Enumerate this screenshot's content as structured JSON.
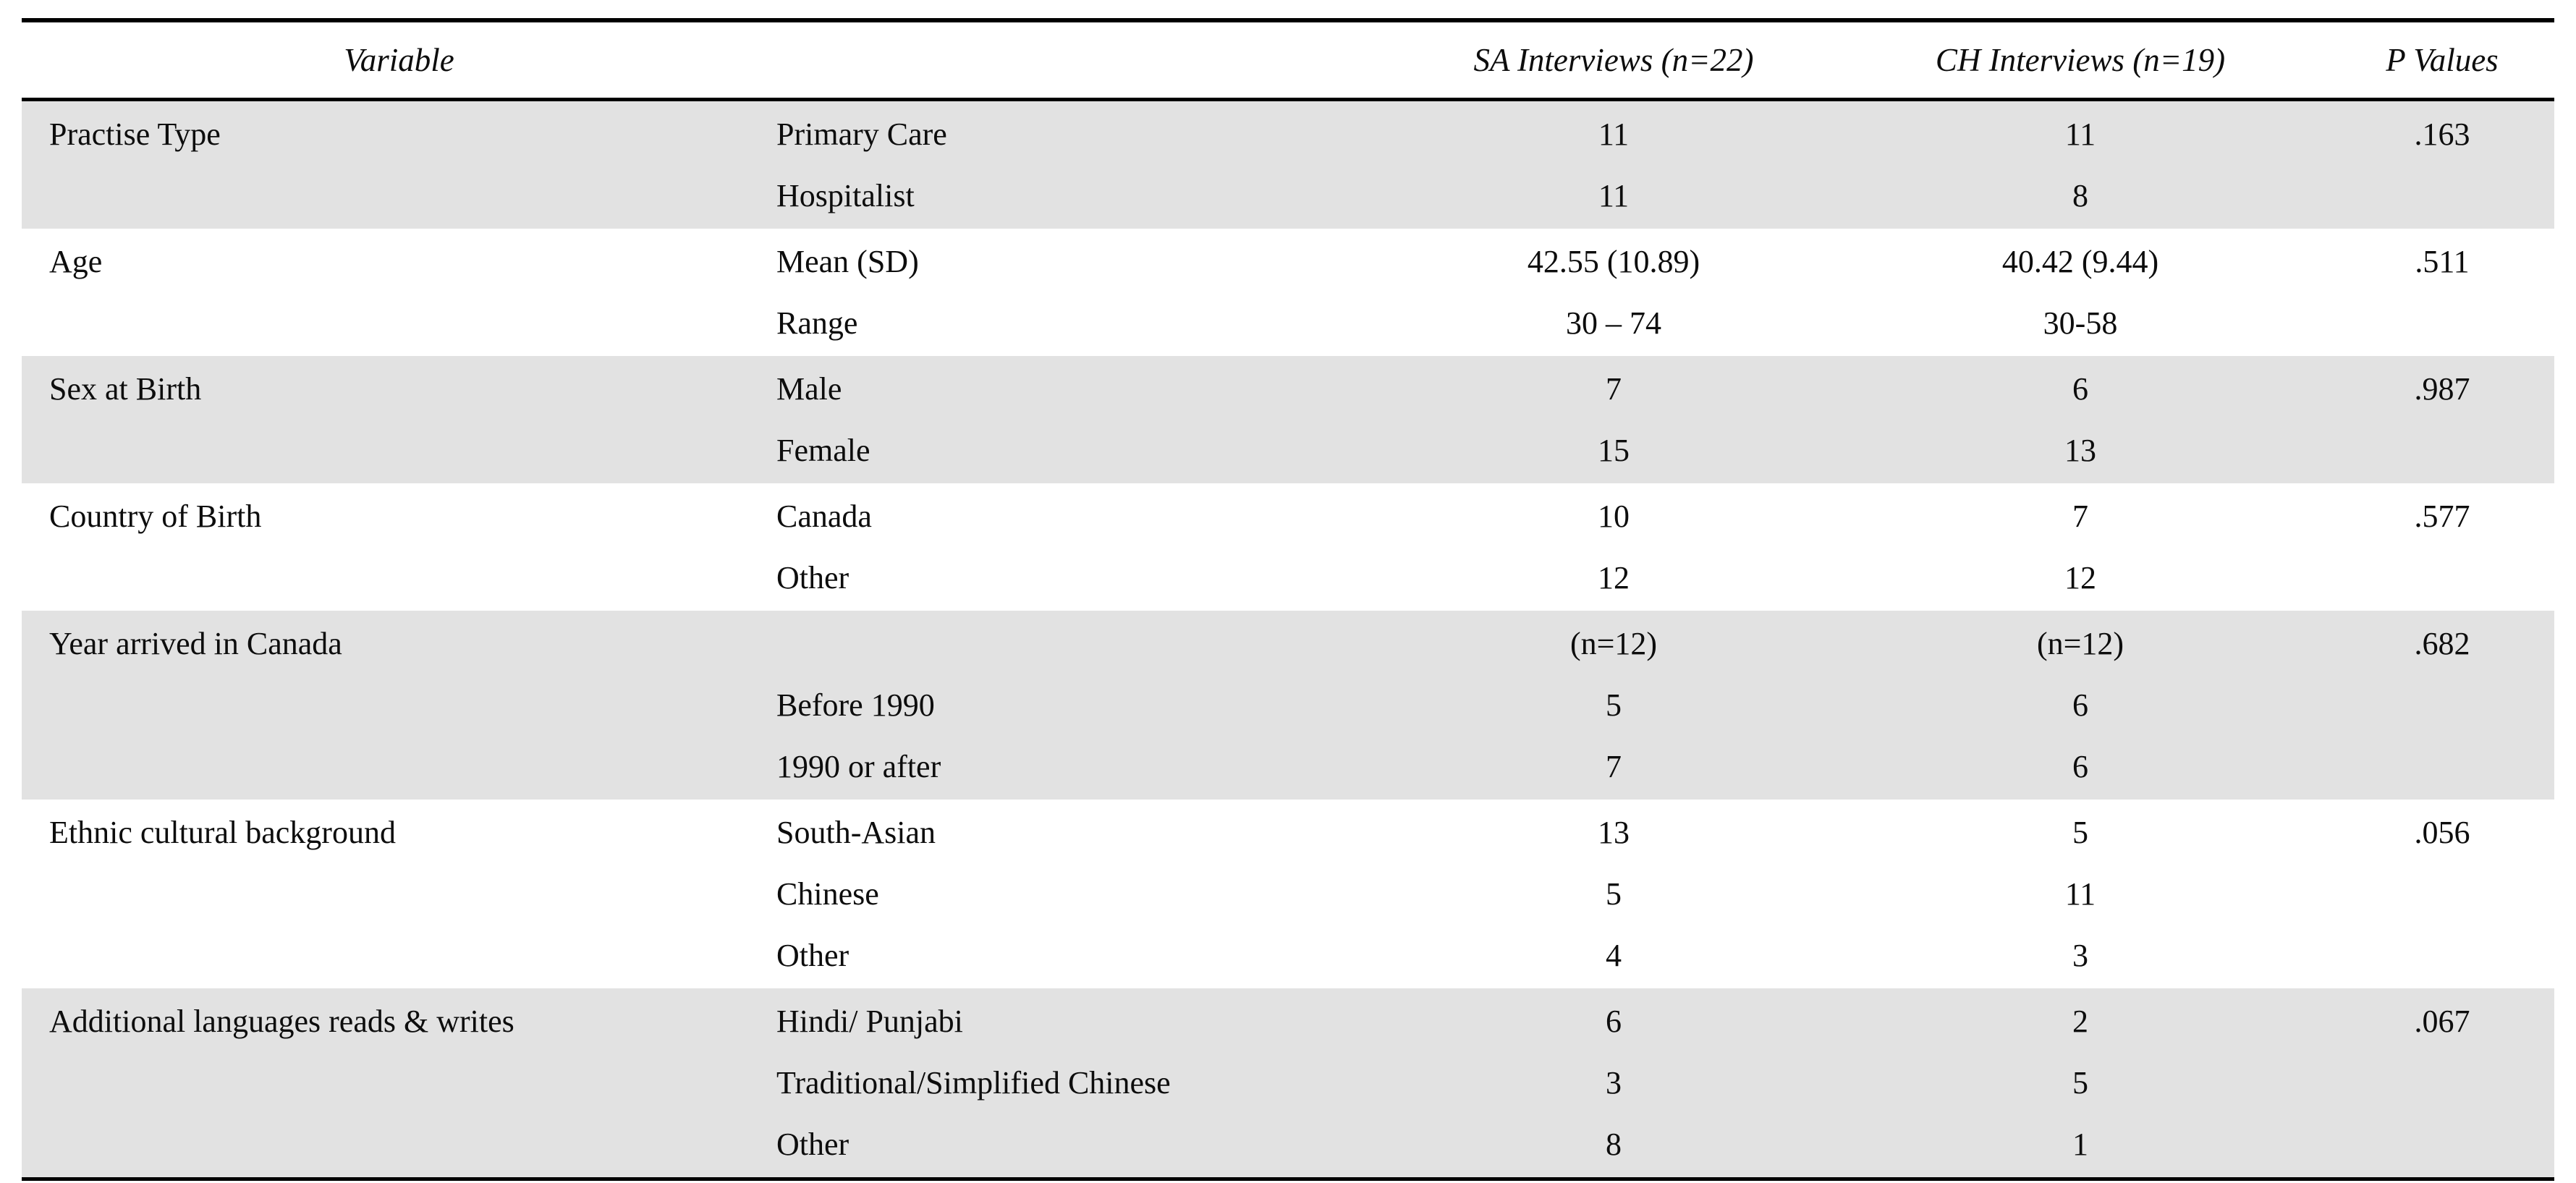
{
  "colors": {
    "row_shade": "#e2e2e2",
    "rule": "#000000",
    "text": "#0d0d0d",
    "background": "#ffffff"
  },
  "table": {
    "headers": {
      "variable": "Variable",
      "sa": "SA Interviews (n=22)",
      "ch": "CH Interviews (n=19)",
      "p": "P Values"
    },
    "rows": [
      {
        "variable": "Practise Type",
        "lines": [
          {
            "label": "Primary Care",
            "sa": "11",
            "ch": "11",
            "p": ".163"
          },
          {
            "label": "Hospitalist",
            "sa": "11",
            "ch": "8",
            "p": ""
          }
        ]
      },
      {
        "variable": "Age",
        "lines": [
          {
            "label": "Mean (SD)",
            "sa": "42.55 (10.89)",
            "ch": "40.42 (9.44)",
            "p": ".511"
          },
          {
            "label": "Range",
            "sa": "30 – 74",
            "ch": "30-58",
            "p": ""
          }
        ]
      },
      {
        "variable": "Sex at Birth",
        "lines": [
          {
            "label": "Male",
            "sa": "7",
            "ch": "6",
            "p": ".987"
          },
          {
            "label": "Female",
            "sa": "15",
            "ch": "13",
            "p": ""
          }
        ]
      },
      {
        "variable": "Country of Birth",
        "lines": [
          {
            "label": "Canada",
            "sa": "10",
            "ch": "7",
            "p": ".577"
          },
          {
            "label": "Other",
            "sa": "12",
            "ch": "12",
            "p": ""
          }
        ]
      },
      {
        "variable": "Year arrived in Canada",
        "lines": [
          {
            "label": "",
            "sa": "(n=12)",
            "ch": "(n=12)",
            "p": ".682"
          },
          {
            "label": "Before 1990",
            "sa": "5",
            "ch": "6",
            "p": ""
          },
          {
            "label": "1990 or after",
            "sa": "7",
            "ch": "6",
            "p": ""
          }
        ]
      },
      {
        "variable": "Ethnic cultural background",
        "lines": [
          {
            "label": "South-Asian",
            "sa": "13",
            "ch": "5",
            "p": ".056"
          },
          {
            "label": "Chinese",
            "sa": "5",
            "ch": "11",
            "p": ""
          },
          {
            "label": "Other",
            "sa": "4",
            "ch": "3",
            "p": ""
          }
        ]
      },
      {
        "variable": "Additional languages reads & writes",
        "lines": [
          {
            "label": "Hindi/ Punjabi",
            "sa": "6",
            "ch": "2",
            "p": ".067"
          },
          {
            "label": "Traditional/Simplified Chinese",
            "sa": "3",
            "ch": "5",
            "p": ""
          },
          {
            "label": "Other",
            "sa": "8",
            "ch": "1",
            "p": ""
          }
        ]
      }
    ]
  }
}
